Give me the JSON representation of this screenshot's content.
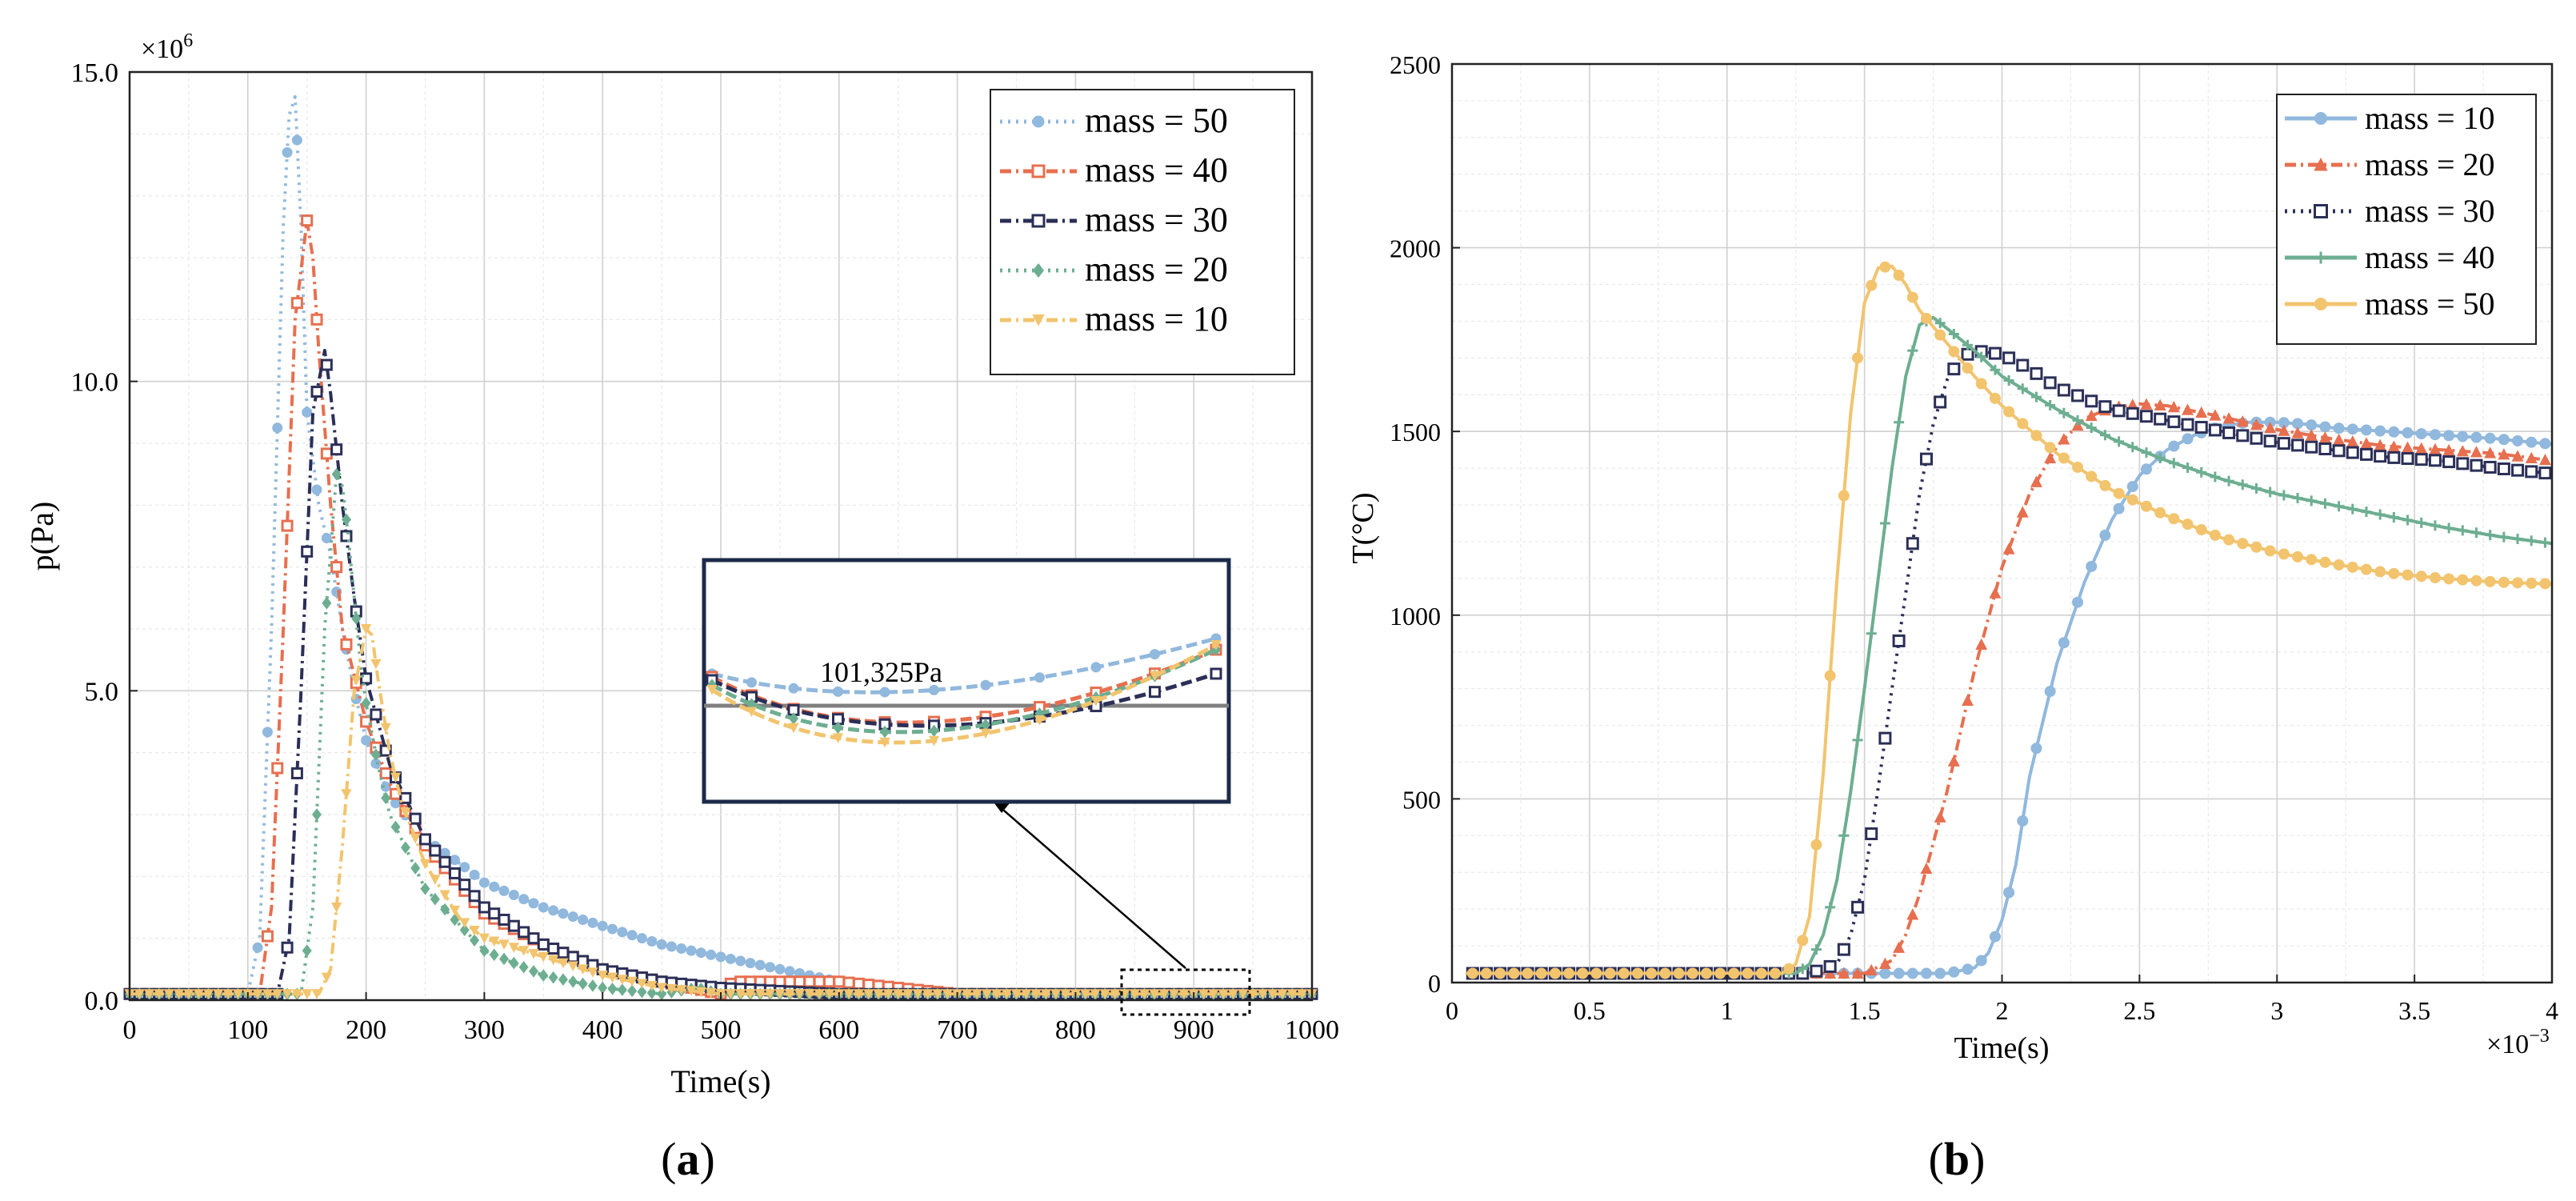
{
  "panel_a": {
    "label_open": "(",
    "label_letter": "a",
    "label_close": ")",
    "exponent_label": "×10",
    "exponent_power": "6",
    "inset_annotation": "101,325Pa"
  },
  "panel_b": {
    "label_open": "(",
    "label_letter": "b",
    "label_close": ")",
    "exponent_label": "×10",
    "exponent_power": "−3"
  },
  "colors": {
    "blue": "#91B8DD",
    "red": "#E76F4F",
    "navy": "#2B2F57",
    "green": "#6DAE91",
    "yellow": "#F2C46E"
  },
  "chart_data": [
    {
      "type": "line",
      "title": "",
      "xlabel": "Time(s)",
      "ylabel": "p(Pa)",
      "xlim": [
        0,
        1000
      ],
      "ylim": [
        0,
        15.0
      ],
      "x_ticks": [
        "0",
        "100",
        "200",
        "300",
        "400",
        "500",
        "600",
        "700",
        "800",
        "900",
        "1000"
      ],
      "y_ticks": [
        "0.0",
        "5.0",
        "10.0",
        "15.0"
      ],
      "y_scale_note": "×10^6",
      "grid": true,
      "legend_position": "top-right",
      "series": [
        {
          "name": "mass = 50",
          "color": "#91B8DD",
          "marker": "circle",
          "dash": "dotted",
          "x": [
            0,
            100,
            110,
            120,
            130,
            135,
            140,
            145,
            150,
            160,
            170,
            180,
            190,
            200,
            220,
            250,
            280,
            300,
            350,
            400,
            450,
            500,
            550,
            600,
            650,
            700,
            750,
            800,
            900,
            1000
          ],
          "y": [
            0.1,
            0.1,
            1.0,
            6.0,
            12.5,
            14.3,
            14.6,
            12.5,
            9.5,
            8.0,
            7.2,
            6.0,
            5.0,
            4.2,
            3.3,
            2.6,
            2.2,
            1.9,
            1.5,
            1.2,
            0.9,
            0.7,
            0.5,
            0.3,
            0.2,
            0.1,
            0.1,
            0.1,
            0.1,
            0.1
          ]
        },
        {
          "name": "mass = 40",
          "color": "#E76F4F",
          "marker": "square",
          "dash": "dashdot",
          "x": [
            0,
            110,
            120,
            130,
            140,
            150,
            155,
            160,
            170,
            180,
            200,
            220,
            250,
            300,
            350,
            400,
            450,
            500,
            510,
            550,
            600,
            650,
            700,
            800,
            900,
            1000
          ],
          "y": [
            0.1,
            0.1,
            1.5,
            6.0,
            11.0,
            12.6,
            12.0,
            10.5,
            8.0,
            6.0,
            4.5,
            3.5,
            2.5,
            1.4,
            0.9,
            0.5,
            0.3,
            0.1,
            0.3,
            0.3,
            0.3,
            0.2,
            0.1,
            0.1,
            0.1,
            0.1
          ]
        },
        {
          "name": "mass = 30",
          "color": "#2B2F57",
          "marker": "square",
          "dash": "dashdot",
          "x": [
            0,
            125,
            135,
            145,
            155,
            165,
            170,
            180,
            190,
            200,
            220,
            250,
            300,
            350,
            400,
            450,
            500,
            600,
            700,
            800,
            900,
            1000
          ],
          "y": [
            0.1,
            0.1,
            1.0,
            5.0,
            9.5,
            10.5,
            9.8,
            8.0,
            6.5,
            5.2,
            3.8,
            2.6,
            1.5,
            0.9,
            0.5,
            0.3,
            0.2,
            0.1,
            0.1,
            0.1,
            0.1,
            0.1
          ]
        },
        {
          "name": "mass = 20",
          "color": "#6DAE91",
          "marker": "diamond",
          "dash": "dotted",
          "x": [
            0,
            145,
            155,
            165,
            175,
            180,
            185,
            195,
            200,
            210,
            220,
            250,
            300,
            350,
            400,
            450,
            480,
            500,
            600,
            700,
            800,
            900,
            1000
          ],
          "y": [
            0.1,
            0.1,
            1.5,
            6.0,
            8.5,
            8.3,
            7.5,
            5.5,
            4.8,
            3.8,
            3.0,
            1.8,
            0.8,
            0.4,
            0.2,
            0.1,
            0.2,
            0.1,
            0.1,
            0.1,
            0.1,
            0.1,
            0.1
          ]
        },
        {
          "name": "mass = 10",
          "color": "#F2C46E",
          "marker": "triangle-down",
          "dash": "dashdot",
          "x": [
            0,
            160,
            170,
            180,
            190,
            200,
            205,
            210,
            220,
            230,
            250,
            280,
            300,
            350,
            400,
            450,
            500,
            600,
            700,
            800,
            900,
            1000
          ],
          "y": [
            0.1,
            0.1,
            0.5,
            2.5,
            5.0,
            6.0,
            5.9,
            5.2,
            4.0,
            3.2,
            2.2,
            1.3,
            1.0,
            0.7,
            0.4,
            0.2,
            0.1,
            0.1,
            0.1,
            0.1,
            0.1,
            0.1
          ]
        }
      ]
    },
    {
      "type": "line",
      "title": "",
      "xlabel": "Time(s)",
      "ylabel": "T(°C)",
      "xlim": [
        0,
        4
      ],
      "ylim": [
        0,
        2500
      ],
      "x_ticks": [
        "0",
        "0.5",
        "1",
        "1.5",
        "2",
        "2.5",
        "3",
        "3.5",
        "4"
      ],
      "y_ticks": [
        "0",
        "500",
        "1000",
        "1500",
        "2000",
        "2500"
      ],
      "x_scale_note": "×10^−3",
      "grid": true,
      "legend_position": "top-right",
      "series": [
        {
          "name": "mass = 10",
          "color": "#91B8DD",
          "marker": "circle",
          "dash": "solid",
          "x": [
            0.05,
            1.8,
            1.9,
            1.95,
            2.0,
            2.05,
            2.1,
            2.2,
            2.3,
            2.4,
            2.5,
            2.6,
            2.7,
            2.8,
            2.9,
            3.0,
            3.1,
            3.2,
            3.4,
            3.6,
            3.8,
            4.0
          ],
          "y": [
            25,
            25,
            40,
            80,
            170,
            320,
            560,
            870,
            1090,
            1260,
            1380,
            1450,
            1490,
            1515,
            1525,
            1525,
            1520,
            1510,
            1500,
            1490,
            1480,
            1465
          ]
        },
        {
          "name": "mass = 20",
          "color": "#E76F4F",
          "marker": "triangle-up",
          "dash": "dashdot",
          "x": [
            0.05,
            1.5,
            1.6,
            1.65,
            1.7,
            1.8,
            1.9,
            2.0,
            2.1,
            2.2,
            2.3,
            2.4,
            2.5,
            2.6,
            2.8,
            3.0,
            3.2,
            3.4,
            3.6,
            3.8,
            4.0
          ],
          "y": [
            25,
            25,
            60,
            130,
            240,
            520,
            850,
            1130,
            1330,
            1460,
            1535,
            1565,
            1575,
            1570,
            1540,
            1505,
            1480,
            1460,
            1450,
            1440,
            1420
          ]
        },
        {
          "name": "mass = 30",
          "color": "#2B2F57",
          "marker": "square",
          "dash": "dotted",
          "x": [
            0.05,
            1.3,
            1.4,
            1.45,
            1.5,
            1.55,
            1.6,
            1.65,
            1.7,
            1.75,
            1.8,
            1.85,
            1.9,
            2.0,
            2.1,
            2.2,
            2.4,
            2.6,
            2.8,
            3.0,
            3.2,
            3.4,
            3.6,
            3.8,
            4.0
          ],
          "y": [
            25,
            25,
            50,
            130,
            280,
            530,
            800,
            1060,
            1330,
            1520,
            1640,
            1700,
            1720,
            1710,
            1670,
            1620,
            1560,
            1530,
            1500,
            1470,
            1450,
            1430,
            1420,
            1400,
            1385
          ]
        },
        {
          "name": "mass = 40",
          "color": "#6DAE91",
          "marker": "plus",
          "dash": "solid",
          "x": [
            0.05,
            1.25,
            1.3,
            1.35,
            1.4,
            1.45,
            1.5,
            1.55,
            1.6,
            1.65,
            1.7,
            1.75,
            1.8,
            1.9,
            2.0,
            2.2,
            2.4,
            2.6,
            2.8,
            3.0,
            3.2,
            3.4,
            3.6,
            3.8,
            4.0
          ],
          "y": [
            25,
            25,
            50,
            130,
            280,
            520,
            800,
            1100,
            1400,
            1650,
            1790,
            1810,
            1780,
            1720,
            1650,
            1560,
            1480,
            1420,
            1370,
            1330,
            1300,
            1270,
            1240,
            1215,
            1195
          ]
        },
        {
          "name": "mass = 50",
          "color": "#F2C46E",
          "marker": "circle",
          "dash": "solid",
          "x": [
            0.05,
            1.2,
            1.25,
            1.3,
            1.35,
            1.4,
            1.45,
            1.5,
            1.55,
            1.6,
            1.65,
            1.7,
            1.8,
            1.9,
            2.0,
            2.2,
            2.4,
            2.6,
            2.8,
            3.0,
            3.2,
            3.4,
            3.6,
            3.8,
            4.0
          ],
          "y": [
            25,
            25,
            50,
            180,
            570,
            1100,
            1550,
            1850,
            1945,
            1950,
            1900,
            1830,
            1740,
            1650,
            1570,
            1440,
            1340,
            1270,
            1210,
            1170,
            1140,
            1115,
            1100,
            1090,
            1085
          ]
        }
      ]
    }
  ]
}
